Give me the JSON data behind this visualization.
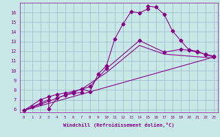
{
  "title": "",
  "xlabel": "Windchill (Refroidissement éolien,°C)",
  "xlim": [
    -0.5,
    23.5
  ],
  "ylim": [
    5.7,
    17.0
  ],
  "xticks": [
    0,
    1,
    2,
    3,
    4,
    5,
    6,
    7,
    8,
    9,
    10,
    11,
    12,
    13,
    14,
    15,
    16,
    17,
    18,
    19,
    20,
    21,
    22,
    23
  ],
  "yticks": [
    6,
    7,
    8,
    9,
    10,
    11,
    12,
    13,
    14,
    15,
    16
  ],
  "bg_color": "#c8e8e8",
  "grid_color": "#9ab8c8",
  "line_color": "#880088",
  "line1_x": [
    0,
    1,
    2,
    3,
    3,
    4,
    5,
    6,
    7,
    7,
    8,
    9,
    10,
    11,
    12,
    13,
    14,
    15,
    15,
    16,
    17,
    18,
    19,
    20,
    21,
    22,
    23
  ],
  "line1_y": [
    5.9,
    6.25,
    6.65,
    7.0,
    6.05,
    7.15,
    7.5,
    7.65,
    7.75,
    8.1,
    7.85,
    9.65,
    10.5,
    13.25,
    14.8,
    16.1,
    15.95,
    16.35,
    16.65,
    16.55,
    15.8,
    14.1,
    13.1,
    12.15,
    12.0,
    11.65,
    11.4
  ],
  "line2_x": [
    0,
    2,
    3,
    4,
    5,
    6,
    7,
    8,
    10,
    14,
    17,
    19,
    20,
    21,
    22,
    23
  ],
  "line2_y": [
    5.9,
    7.0,
    7.3,
    7.55,
    7.7,
    7.85,
    8.1,
    8.35,
    10.2,
    13.1,
    11.9,
    12.2,
    12.1,
    11.9,
    11.7,
    11.5
  ],
  "line3_x": [
    0,
    7,
    10,
    14,
    17,
    20,
    23
  ],
  "line3_y": [
    5.9,
    8.1,
    9.8,
    12.6,
    11.7,
    11.5,
    11.3
  ],
  "line4_x": [
    0,
    23
  ],
  "line4_y": [
    5.9,
    11.4
  ],
  "marker": "D",
  "markersize": 2.5,
  "linewidth": 0.8
}
